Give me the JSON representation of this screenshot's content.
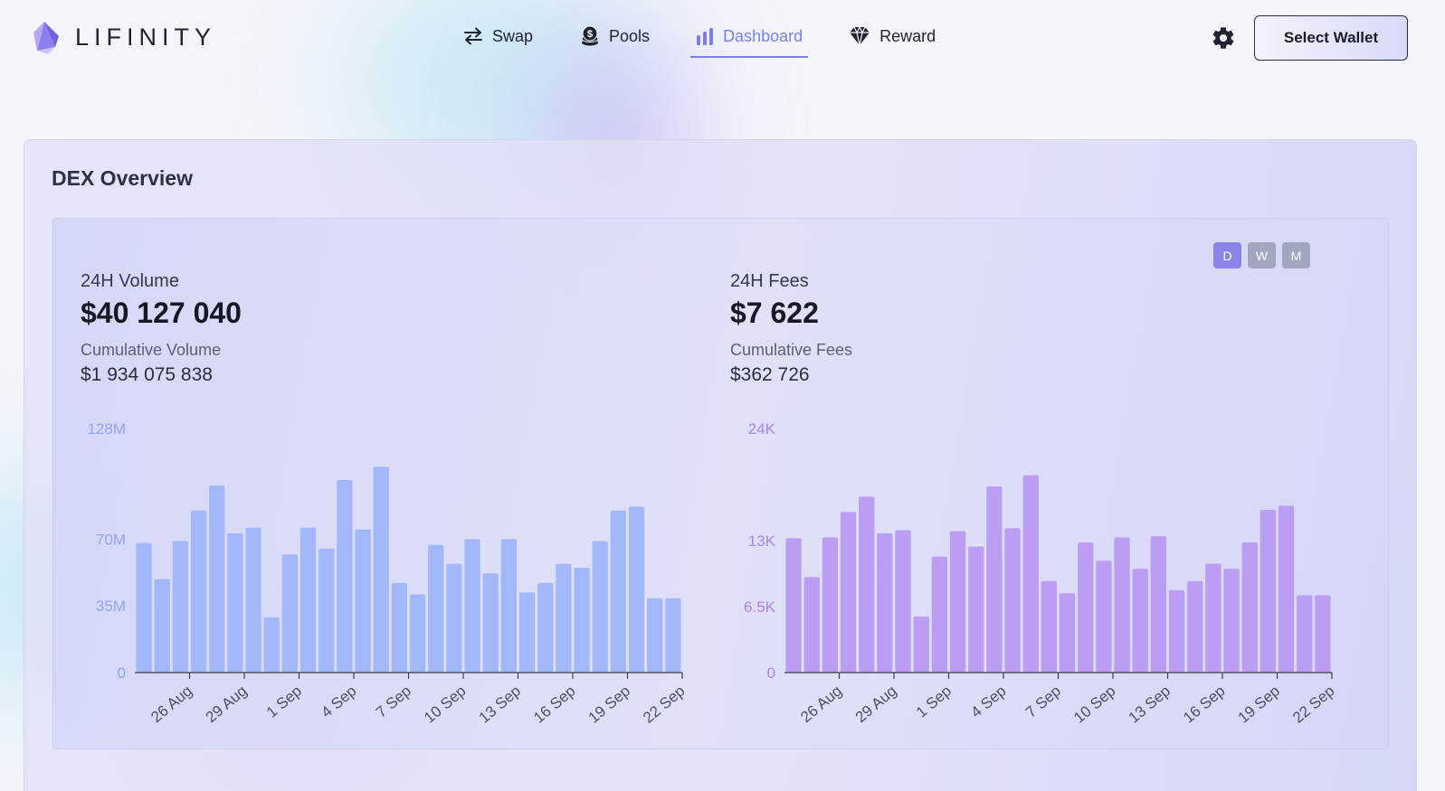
{
  "brand": {
    "name": "LIFINITY"
  },
  "nav": {
    "swap": "Swap",
    "pools": "Pools",
    "dashboard": "Dashboard",
    "reward": "Reward"
  },
  "wallet_button": "Select Wallet",
  "overview": {
    "title": "DEX Overview",
    "periods": [
      "D",
      "W",
      "M"
    ],
    "active_period": "D"
  },
  "volume": {
    "label": "24H Volume",
    "value": "$40 127 040",
    "cumulative_label": "Cumulative Volume",
    "cumulative_value": "$1 934 075 838"
  },
  "fees": {
    "label": "24H Fees",
    "value": "$7 622",
    "cumulative_label": "Cumulative Fees",
    "cumulative_value": "$362 726"
  },
  "colors": {
    "volume_bar": "#a3b8fa",
    "volume_tick": "#8fa4f5",
    "fees_bar": "#bb9ef4",
    "fees_tick": "#a884ee",
    "accent": "#7b7fe6"
  },
  "chart_data": [
    {
      "type": "bar",
      "title": "",
      "xlabel": "",
      "ylabel": "",
      "x_tick_labels": [
        "26 Aug",
        "29 Aug",
        "1 Sep",
        "4 Sep",
        "7 Sep",
        "10 Sep",
        "13 Sep",
        "16 Sep",
        "19 Sep",
        "22 Sep"
      ],
      "y_tick_labels": [
        "0",
        "35M",
        "70M",
        "128M"
      ],
      "y_ticks": [
        0,
        35,
        70,
        128
      ],
      "ylim": [
        0,
        128
      ],
      "unit": "M",
      "grid": false,
      "values": [
        68,
        49,
        69,
        85,
        98,
        73,
        76,
        29,
        62,
        76,
        65,
        101,
        75,
        108,
        47,
        41,
        67,
        57,
        70,
        52,
        70,
        42,
        47,
        57,
        55,
        69,
        85,
        87,
        39,
        39
      ]
    },
    {
      "type": "bar",
      "title": "",
      "xlabel": "",
      "ylabel": "",
      "x_tick_labels": [
        "26 Aug",
        "29 Aug",
        "1 Sep",
        "4 Sep",
        "7 Sep",
        "10 Sep",
        "13 Sep",
        "16 Sep",
        "19 Sep",
        "22 Sep"
      ],
      "y_tick_labels": [
        "0",
        "6.5K",
        "13K",
        "24K"
      ],
      "y_ticks": [
        0,
        6.5,
        13,
        24
      ],
      "ylim": [
        0,
        24
      ],
      "unit": "K",
      "grid": false,
      "values": [
        13.2,
        9.4,
        13.3,
        15.8,
        17.3,
        13.7,
        14.0,
        5.5,
        11.4,
        13.9,
        12.4,
        18.3,
        14.2,
        19.4,
        9.0,
        7.8,
        12.8,
        11.0,
        13.3,
        10.2,
        13.4,
        8.1,
        9.0,
        10.7,
        10.2,
        12.8,
        16.0,
        16.4,
        7.6,
        7.6
      ]
    }
  ]
}
